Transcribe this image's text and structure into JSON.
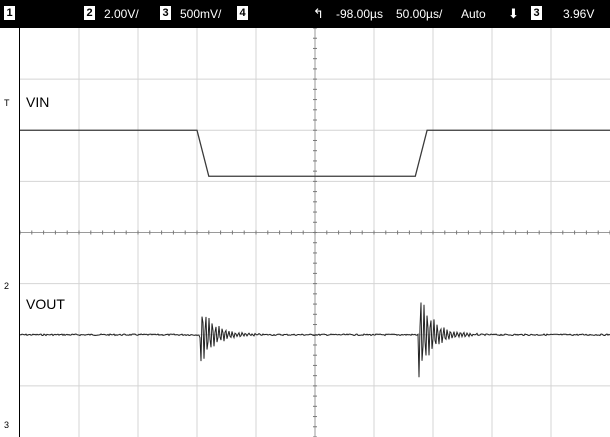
{
  "topbar": {
    "ch1_box": "1",
    "ch2_box": "2",
    "ch2_scale": "2.00V/",
    "ch3_box": "3",
    "ch3_scale": "500mV/",
    "ch4_box": "4",
    "time_offset": "-98.00µs",
    "time_scale": "50.00µs/",
    "trigger_mode": "Auto",
    "trigger_slope_icon": "falling-edge-icon",
    "trigger_source_box": "3",
    "trigger_level": "3.96V"
  },
  "markers": {
    "trigger_marker": "T",
    "ch2_ground": "2",
    "ch3_ground": "3"
  },
  "chart_data": {
    "type": "line",
    "grid": true,
    "x_divisions": 10,
    "y_divisions": 8,
    "series": [
      {
        "name": "VIN",
        "color": "#000000",
        "trace": "step pulse: baseline low, ramps up near 3.1 div, high plateau, ramps down near 6.8 div, returns to baseline",
        "low_level_div": 2.0,
        "high_level_div": 2.9,
        "rise_start_div": 3.0,
        "rise_end_div": 3.2,
        "fall_start_div": 6.7,
        "fall_end_div": 6.9
      },
      {
        "name": "VOUT",
        "color": "#000000",
        "trace": "flat baseline with damped ringing bursts at each VIN edge",
        "baseline_div": 6.0,
        "burst1_start_div": 3.05,
        "burst2_start_div": 6.75
      }
    ]
  }
}
